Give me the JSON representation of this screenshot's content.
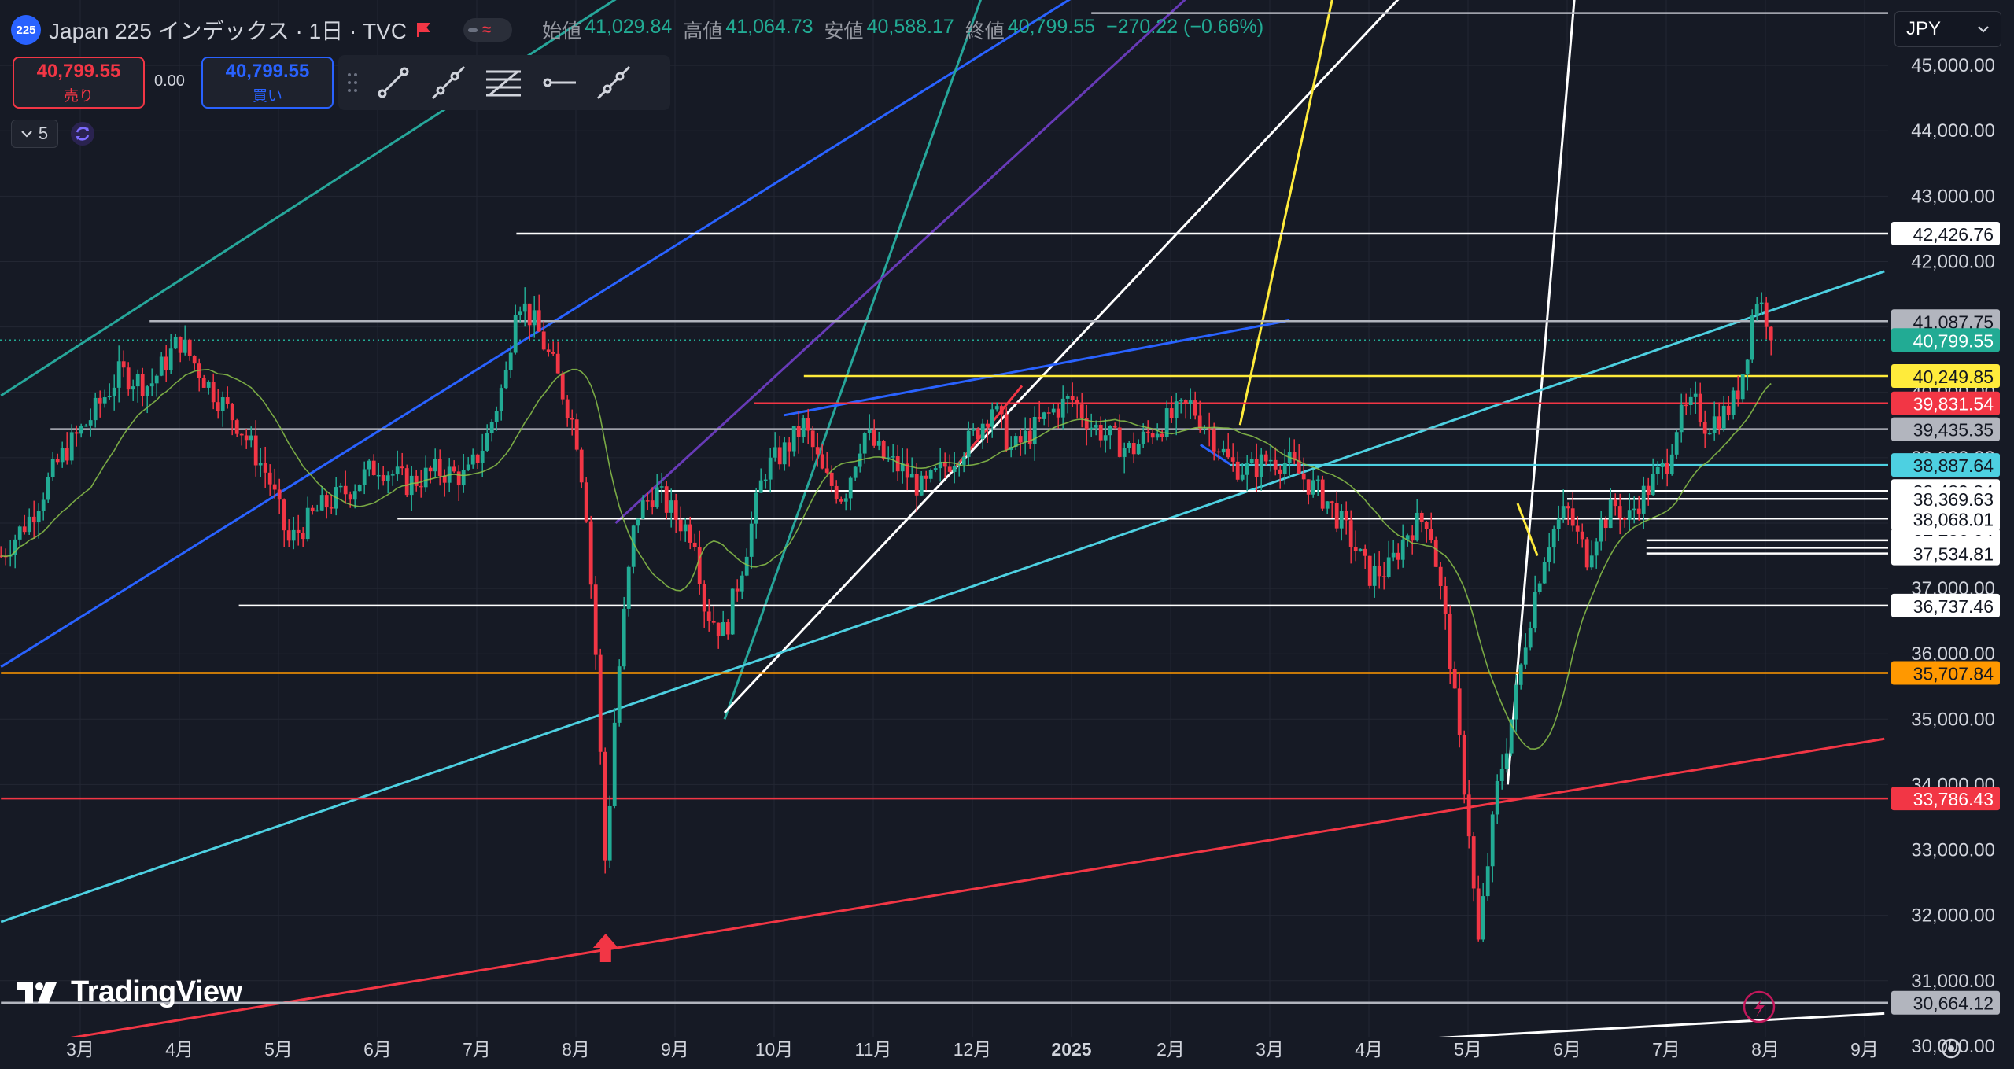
{
  "header": {
    "badge": "225",
    "title": "Japan 225 インデックス · 1日 · TVC",
    "ohlc": [
      {
        "k": "始値",
        "v": "41,029.84"
      },
      {
        "k": "高値",
        "v": "41,064.73"
      },
      {
        "k": "安値",
        "v": "40,588.17"
      },
      {
        "k": "終値",
        "v": "40,799.55"
      }
    ],
    "change": "−270.22 (−0.66%)"
  },
  "trade": {
    "sell_price": "40,799.55",
    "sell_label": "売り",
    "spread": "0.00",
    "buy_price": "40,799.55",
    "buy_label": "買い"
  },
  "indicators": {
    "count": "5"
  },
  "currency": {
    "label": "JPY"
  },
  "watermark": "TradingView",
  "colors": {
    "bg": "#161a25",
    "up": "#22ab94",
    "down": "#f23645",
    "ma": "#8bc34a",
    "white": "#ffffff",
    "grey": "#b2b5be",
    "yellow": "#ffeb3b",
    "red": "#f23645",
    "cyan": "#4dd0e1",
    "blue": "#2962ff",
    "teal": "#26a69a",
    "purple": "#673ab7",
    "orange": "#ff9800"
  },
  "chart_data": {
    "type": "candlestick",
    "instrument": "Japan 225",
    "ylim": [
      29650,
      46000
    ],
    "grid": true,
    "y_ticks": [
      30000,
      31000,
      32000,
      33000,
      34000,
      35000,
      36000,
      37000,
      38000,
      39000,
      40000,
      41000,
      42000,
      43000,
      44000,
      45000
    ],
    "y_tick_labels": [
      "30,000.00",
      "31,000.00",
      "32,000.00",
      "33,000.00",
      "34,000.00",
      "35,000.00",
      "36,000.00",
      "37,000.00",
      "38,000.00",
      "39,000.00",
      "40,000.00",
      "41,000.00",
      "42,000.00",
      "43,000.00",
      "44,000.00",
      "45,000.00"
    ],
    "x_labels": [
      "3月",
      "4月",
      "5月",
      "6月",
      "7月",
      "8月",
      "9月",
      "10月",
      "11月",
      "12月",
      "2025",
      "2月",
      "3月",
      "4月",
      "5月",
      "6月",
      "7月",
      "8月",
      "9月"
    ],
    "x_label_month_index": [
      0,
      1,
      2,
      3,
      4,
      5,
      6,
      7,
      8,
      9,
      10,
      11,
      12,
      13,
      14,
      15,
      16,
      17,
      18
    ],
    "price_labels": [
      {
        "text": "42,426.76",
        "value": 42426.76,
        "bg": "#ffffff",
        "fg": "#131722"
      },
      {
        "text": "41,087.75",
        "value": 41087.75,
        "bg": "#b2b5be",
        "fg": "#131722"
      },
      {
        "text": "40,799.55",
        "value": 40799.55,
        "bg": "#22ab94",
        "fg": "#ffffff"
      },
      {
        "text": "40,249.85",
        "value": 40249.85,
        "bg": "#ffeb3b",
        "fg": "#131722"
      },
      {
        "text": "39,831.54",
        "value": 39831.54,
        "bg": "#f23645",
        "fg": "#ffffff"
      },
      {
        "text": "39,435.35",
        "value": 39435.35,
        "bg": "#b2b5be",
        "fg": "#131722"
      },
      {
        "text": "38,887.64",
        "value": 38887.64,
        "bg": "#4dd0e1",
        "fg": "#131722"
      },
      {
        "text": "38,489.84",
        "value": 38489.84,
        "bg": "#ffffff",
        "fg": "#131722"
      },
      {
        "text": "38,369.63",
        "value": 38369.63,
        "bg": "#ffffff",
        "fg": "#131722"
      },
      {
        "text": "38,068.01",
        "value": 38068.01,
        "bg": "#ffffff",
        "fg": "#131722"
      },
      {
        "text": "37,736.04",
        "value": 37736.04,
        "bg": "#ffffff",
        "fg": "#131722"
      },
      {
        "text": "37,621.77",
        "value": 37621.77,
        "bg": "#ffffff",
        "fg": "#131722"
      },
      {
        "text": "37,534.81",
        "value": 37534.81,
        "bg": "#ffffff",
        "fg": "#131722"
      },
      {
        "text": "36,737.46",
        "value": 36737.46,
        "bg": "#ffffff",
        "fg": "#131722"
      },
      {
        "text": "35,707.84",
        "value": 35707.84,
        "bg": "#ff9800",
        "fg": "#131722"
      },
      {
        "text": "33,786.43",
        "value": 33786.43,
        "bg": "#f23645",
        "fg": "#ffffff"
      },
      {
        "text": "30,664.12",
        "value": 30664.12,
        "bg": "#b2b5be",
        "fg": "#131722"
      }
    ],
    "hlines": [
      {
        "value": 45800,
        "color": "#b2b5be",
        "from": 10.2,
        "to": 19.1
      },
      {
        "value": 42426.76,
        "color": "#ffffff",
        "from": 4.4,
        "to": 19.1
      },
      {
        "value": 41087.75,
        "color": "#b2b5be",
        "from": 0.7,
        "to": 19.1
      },
      {
        "value": 40249.85,
        "color": "#ffeb3b",
        "from": 7.3,
        "to": 19.1
      },
      {
        "value": 39831.54,
        "color": "#f23645",
        "from": 6.8,
        "to": 19.1
      },
      {
        "value": 39435.35,
        "color": "#b2b5be",
        "from": -0.3,
        "to": 19.1
      },
      {
        "value": 38887.64,
        "color": "#4dd0e1",
        "from": 11.6,
        "to": 19.1
      },
      {
        "value": 38489.84,
        "color": "#ffffff",
        "from": 5.8,
        "to": 19.1
      },
      {
        "value": 38369.63,
        "color": "#ffffff",
        "from": 15.0,
        "to": 19.1
      },
      {
        "value": 38068.01,
        "color": "#ffffff",
        "from": 3.2,
        "to": 19.1
      },
      {
        "value": 37736.04,
        "color": "#ffffff",
        "from": 15.8,
        "to": 19.1
      },
      {
        "value": 37621.77,
        "color": "#ffffff",
        "from": 15.8,
        "to": 19.1
      },
      {
        "value": 37534.81,
        "color": "#ffffff",
        "from": 15.8,
        "to": 19.1
      },
      {
        "value": 36737.46,
        "color": "#ffffff",
        "from": 1.6,
        "to": 19.1
      },
      {
        "value": 35707.84,
        "color": "#ff9800",
        "from": -0.8,
        "to": 19.1
      },
      {
        "value": 33786.43,
        "color": "#f23645",
        "from": -0.8,
        "to": 19.1
      },
      {
        "value": 30664.12,
        "color": "#b2b5be",
        "from": -0.8,
        "to": 19.1
      }
    ],
    "trendlines": [
      {
        "color": "#26a69a",
        "x1": -0.8,
        "y1": 39950,
        "x2": 5.9,
        "y2": 46500
      },
      {
        "color": "#2962ff",
        "x1": -0.8,
        "y1": 35800,
        "x2": 10.5,
        "y2": 46500
      },
      {
        "color": "#26a69a",
        "x1": 6.5,
        "y1": 35000,
        "x2": 9.2,
        "y2": 46500
      },
      {
        "color": "#673ab7",
        "x1": 5.4,
        "y1": 38000,
        "x2": 11.5,
        "y2": 46500
      },
      {
        "color": "#ffffff",
        "x1": 6.5,
        "y1": 35100,
        "x2": 13.6,
        "y2": 46500
      },
      {
        "color": "#ffeb3b",
        "x1": 11.7,
        "y1": 39500,
        "x2": 12.7,
        "y2": 46500
      },
      {
        "color": "#ffffff",
        "x1": 14.4,
        "y1": 34000,
        "x2": 15.1,
        "y2": 46500
      },
      {
        "color": "#4dd0e1",
        "x1": -0.8,
        "y1": 31900,
        "x2": 18.2,
        "y2": 41850
      },
      {
        "color": "#f23645",
        "x1": -0.8,
        "y1": 29950,
        "x2": 18.2,
        "y2": 34700
      },
      {
        "color": "#ffffff",
        "x1": 8.0,
        "y1": 29650,
        "x2": 18.2,
        "y2": 30500
      },
      {
        "color": "#2962ff",
        "x1": 7.1,
        "y1": 39650,
        "x2": 12.2,
        "y2": 41100
      },
      {
        "color": "#f23645",
        "x1": 8.8,
        "y1": 38800,
        "x2": 9.5,
        "y2": 40100
      },
      {
        "color": "#ffeb3b",
        "x1": 14.5,
        "y1": 38300,
        "x2": 14.7,
        "y2": 37500
      },
      {
        "color": "#2962ff",
        "x1": 11.3,
        "y1": 39200,
        "x2": 11.6,
        "y2": 38900
      }
    ],
    "closes": [
      [
        -0.8,
        37500
      ],
      [
        -0.5,
        38100
      ],
      [
        -0.2,
        39000
      ],
      [
        0.1,
        39600
      ],
      [
        0.4,
        40300
      ],
      [
        0.7,
        40100
      ],
      [
        1.0,
        40800
      ],
      [
        1.3,
        40100
      ],
      [
        1.6,
        39500
      ],
      [
        1.9,
        38700
      ],
      [
        2.1,
        37700
      ],
      [
        2.4,
        38200
      ],
      [
        2.7,
        38500
      ],
      [
        3.0,
        38900
      ],
      [
        3.3,
        38600
      ],
      [
        3.6,
        38800
      ],
      [
        3.9,
        38700
      ],
      [
        4.1,
        39300
      ],
      [
        4.3,
        40300
      ],
      [
        4.4,
        41500
      ],
      [
        4.6,
        41000
      ],
      [
        4.8,
        40300
      ],
      [
        5.0,
        39400
      ],
      [
        5.1,
        38300
      ],
      [
        5.2,
        36000
      ],
      [
        5.3,
        32700
      ],
      [
        5.4,
        35200
      ],
      [
        5.5,
        36800
      ],
      [
        5.6,
        38100
      ],
      [
        5.8,
        38500
      ],
      [
        6.0,
        38100
      ],
      [
        6.2,
        37800
      ],
      [
        6.3,
        36700
      ],
      [
        6.5,
        36300
      ],
      [
        6.7,
        37500
      ],
      [
        6.9,
        38800
      ],
      [
        7.1,
        39100
      ],
      [
        7.3,
        39500
      ],
      [
        7.5,
        38700
      ],
      [
        7.7,
        38400
      ],
      [
        7.9,
        39400
      ],
      [
        8.1,
        39000
      ],
      [
        8.3,
        38800
      ],
      [
        8.5,
        38500
      ],
      [
        8.8,
        39000
      ],
      [
        9.0,
        39300
      ],
      [
        9.2,
        39800
      ],
      [
        9.4,
        39100
      ],
      [
        9.6,
        39400
      ],
      [
        9.8,
        39700
      ],
      [
        10.0,
        39900
      ],
      [
        10.2,
        39500
      ],
      [
        10.4,
        39300
      ],
      [
        10.6,
        39100
      ],
      [
        10.8,
        39400
      ],
      [
        11.0,
        39600
      ],
      [
        11.2,
        39800
      ],
      [
        11.4,
        39400
      ],
      [
        11.6,
        38900
      ],
      [
        11.8,
        38800
      ],
      [
        12.0,
        39000
      ],
      [
        12.2,
        38900
      ],
      [
        12.4,
        38600
      ],
      [
        12.6,
        38300
      ],
      [
        12.8,
        37800
      ],
      [
        13.0,
        37200
      ],
      [
        13.2,
        37300
      ],
      [
        13.4,
        37900
      ],
      [
        13.6,
        38100
      ],
      [
        13.7,
        37200
      ],
      [
        13.8,
        36200
      ],
      [
        13.9,
        34800
      ],
      [
        14.0,
        33500
      ],
      [
        14.1,
        31500
      ],
      [
        14.2,
        32800
      ],
      [
        14.3,
        34000
      ],
      [
        14.4,
        34700
      ],
      [
        14.5,
        35500
      ],
      [
        14.6,
        36400
      ],
      [
        14.7,
        37100
      ],
      [
        14.8,
        37700
      ],
      [
        14.9,
        38000
      ],
      [
        15.0,
        38200
      ],
      [
        15.1,
        37800
      ],
      [
        15.2,
        37500
      ],
      [
        15.3,
        37900
      ],
      [
        15.4,
        38100
      ],
      [
        15.5,
        38300
      ],
      [
        15.6,
        38000
      ],
      [
        15.7,
        38300
      ],
      [
        15.8,
        38500
      ],
      [
        15.9,
        38700
      ],
      [
        16.0,
        38900
      ],
      [
        16.1,
        39500
      ],
      [
        16.2,
        39700
      ],
      [
        16.3,
        39800
      ],
      [
        16.4,
        39500
      ],
      [
        16.5,
        39600
      ],
      [
        16.6,
        39700
      ],
      [
        16.7,
        39900
      ],
      [
        16.8,
        40500
      ],
      [
        16.9,
        41500
      ],
      [
        17.0,
        41200
      ],
      [
        17.1,
        40800
      ]
    ]
  }
}
